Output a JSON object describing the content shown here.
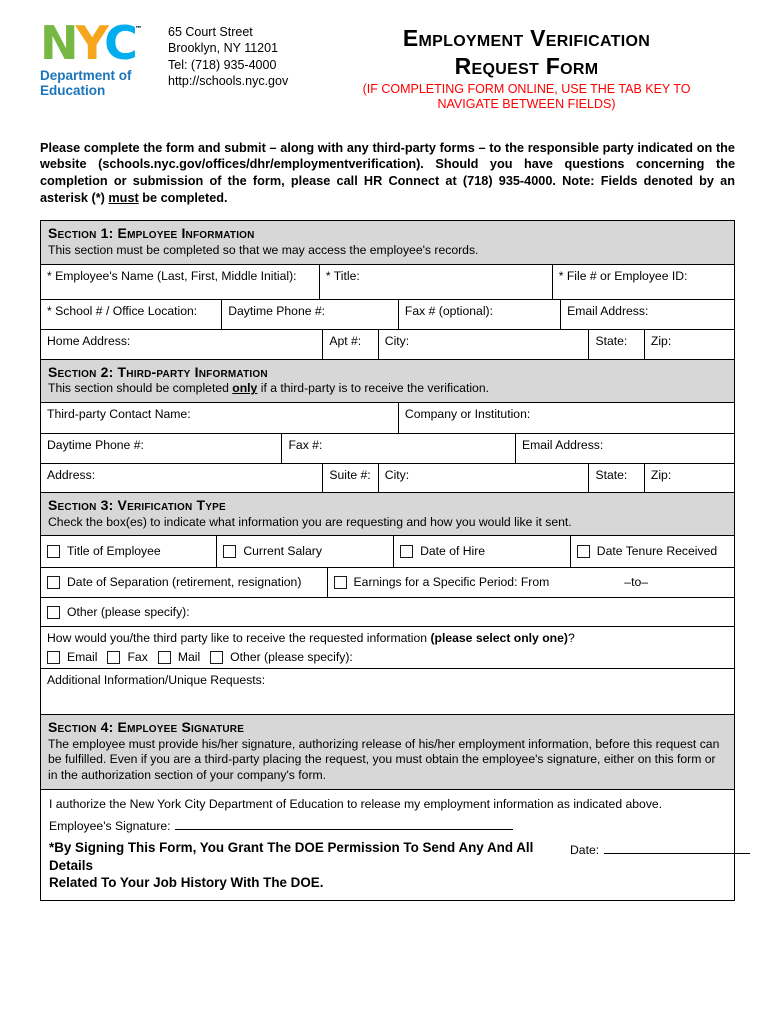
{
  "header": {
    "logo": {
      "letters": [
        {
          "ch": "N",
          "color": "#76b843"
        },
        {
          "ch": "Y",
          "color": "#f7a51b"
        },
        {
          "ch": "C",
          "color": "#00aeef"
        }
      ],
      "trademark": "™",
      "dept_line1": "Department of",
      "dept_line2": "Education",
      "dept_color": "#1b75bc"
    },
    "address_lines": [
      "65 Court Street",
      "Brooklyn, NY 11201",
      "Tel: (718) 935-4000",
      "http://schools.nyc.gov"
    ],
    "title_line1": "Employment Verification",
    "title_line2": "Request Form",
    "online_note_line1": "(IF COMPLETING FORM ONLINE, USE THE TAB KEY TO",
    "online_note_line2": "NAVIGATE BETWEEN FIELDS)",
    "note_color": "#ff0000"
  },
  "intro_rich": [
    {
      "t": "Please complete the form and submit – along with any third-party forms – to the responsible party indicated on the website (schools.nyc.gov/offices/dhr/employmentverification). Should you have questions concerning the completion or submission of the form, please call HR Connect at (718) 935-4000. Note: Fields denoted by an asterisk (*) "
    },
    {
      "t": "must",
      "u": true
    },
    {
      "t": " be completed."
    }
  ],
  "sections": {
    "s1": {
      "title": "Section 1: Employee Information",
      "subtitle": "This section must be completed so that we may access the employee's records.",
      "r1": [
        "* Employee's Name (Last, First, Middle Initial):",
        "* Title:",
        "* File # or Employee ID:"
      ],
      "r2": [
        "* School # / Office Location:",
        "Daytime Phone #:",
        "Fax # (optional):",
        "Email Address:"
      ],
      "r3": [
        "Home Address:",
        "Apt #:",
        "City:",
        "State:",
        "Zip:"
      ]
    },
    "s2": {
      "title": "Section 2: Third-party Information",
      "subtitle_rich": [
        {
          "t": "This section should be completed "
        },
        {
          "t": "only",
          "b": true,
          "u": true
        },
        {
          "t": " if a third-party is to receive the verification."
        }
      ],
      "r1": [
        "Third-party Contact Name:",
        "Company or Institution:"
      ],
      "r2": [
        "Daytime Phone #:",
        "Fax #:",
        "Email Address:"
      ],
      "r3": [
        "Address:",
        "Suite #:",
        "City:",
        "State:",
        "Zip:"
      ]
    },
    "s3": {
      "title": "Section 3: Verification Type",
      "subtitle": "Check the box(es) to indicate what information you are requesting and how you would like it sent.",
      "row1_options": [
        "Title of Employee",
        "Current Salary",
        "Date of Hire",
        "Date Tenure Received"
      ],
      "row2_option1": "Date of Separation (retirement, resignation)",
      "row2_option2": "Earnings for a Specific Period: From",
      "row2_to": "–to–",
      "row3_option": "Other (please specify):",
      "delivery_question_rich": [
        {
          "t": "How would you/the third party like to receive the requested information "
        },
        {
          "t": "(please select only one)",
          "b": true
        },
        {
          "t": "?"
        }
      ],
      "delivery_options": [
        "Email",
        "Fax",
        "Mail",
        "Other (please specify):"
      ],
      "additional_label": "Additional Information/Unique Requests:"
    },
    "s4": {
      "title": "Section 4: Employee Signature",
      "subtitle": "The employee must provide his/her signature, authorizing release of his/her employment information, before this request can be fulfilled.  Even if you are a third-party placing the request, you must obtain the employee's signature, either on this form or in the authorization section of your company's form.",
      "authorize_text": "I authorize the New York City Department of Education to release my employment information as indicated above.",
      "signature_label": "Employee's Signature:",
      "grant_line1": "*By Signing This Form, You Grant The DOE Permission To Send Any And All Details",
      "grant_line2": "Related To Your Job History With The DOE.",
      "date_label": "Date:"
    }
  }
}
